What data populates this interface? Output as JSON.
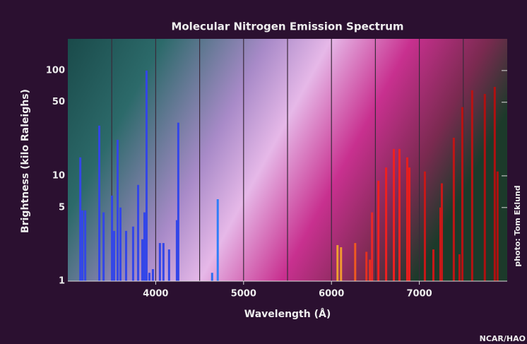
{
  "chart_data": {
    "type": "spectrum",
    "title": "Molecular Nitrogen Emission Spectrum",
    "x_label": "Wavelength (Å)",
    "y_label": "Brightness (kilo Raleighs)",
    "credit": "photo: Tom Eklund",
    "source": "NCAR/HAO",
    "log_y": true,
    "xlim": [
      3000,
      8000
    ],
    "xticks": [
      4000,
      5000,
      6000,
      7000
    ],
    "xgrid": [
      3500,
      4000,
      4500,
      5000,
      5500,
      6000,
      6500,
      7000,
      7500
    ],
    "ylim": [
      1,
      200
    ],
    "yticks": [
      1,
      5,
      10,
      50,
      100
    ],
    "x": [
      3142,
      3166,
      3198,
      3358,
      3407,
      3503,
      3527,
      3567,
      3599,
      3663,
      3743,
      3800,
      3848,
      3872,
      3896,
      3928,
      3968,
      4048,
      4088,
      4152,
      4241,
      4257,
      4642,
      4706,
      6069,
      6109,
      6270,
      6398,
      6438,
      6462,
      6534,
      6622,
      6710,
      6774,
      6862,
      6887,
      7063,
      7160,
      7240,
      7256,
      7392,
      7457,
      7489,
      7601,
      7745,
      7858,
      7890
    ],
    "values": [
      15,
      4.7,
      4.7,
      30,
      4.5,
      6.5,
      3,
      22,
      5,
      3,
      3.3,
      8.2,
      2.5,
      4.5,
      100,
      1.2,
      1.3,
      2.3,
      2.3,
      2,
      3.8,
      32,
      1.2,
      6,
      2.2,
      2.1,
      2.3,
      1.9,
      1.6,
      4.5,
      9,
      12,
      18,
      18,
      15,
      12,
      11,
      2,
      5,
      8.5,
      23,
      1.8,
      45,
      65,
      60,
      70,
      11
    ],
    "colors": [
      "#3346e8",
      "#3346e8",
      "#3346e8",
      "#3346e8",
      "#3346e8",
      "#3346e8",
      "#3346e8",
      "#3346e8",
      "#3346e8",
      "#3346e8",
      "#3346e8",
      "#3346e8",
      "#3346e8",
      "#3346e8",
      "#3346e8",
      "#3346e8",
      "#3346e8",
      "#3346e8",
      "#3346e8",
      "#3346e8",
      "#3346e8",
      "#3346e8",
      "#2f6ff0",
      "#2f7ef8",
      "#f0a030",
      "#f09a30",
      "#f05a20",
      "#e53020",
      "#e53020",
      "#e82828",
      "#ee2020",
      "#ee2020",
      "#ee2020",
      "#ee2020",
      "#e81e1e",
      "#e81e1e",
      "#c81818",
      "#c81818",
      "#c81818",
      "#c81818",
      "#c01515",
      "#b81212",
      "#b81212",
      "#b81212",
      "#b01010",
      "#b01010",
      "#b01010"
    ]
  }
}
